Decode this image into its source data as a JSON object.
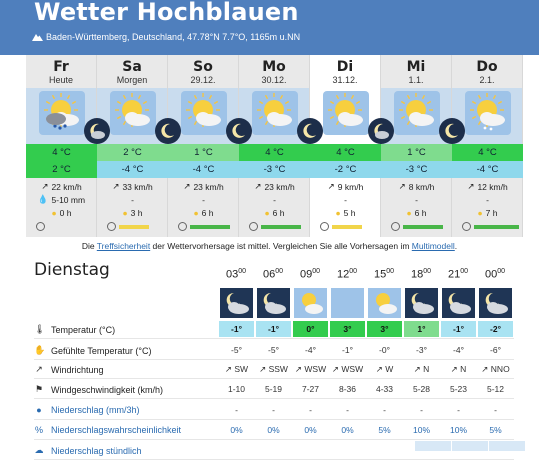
{
  "header": {
    "title": "Wetter Hochblauen",
    "subtitle": "Baden-Württemberg, Deutschland, 47.78°N 7.7°O, 1165m u.NN",
    "bg_color": "#4f7fbd"
  },
  "days": [
    {
      "name": "Fr",
      "date": "Heute",
      "tmax": "4 °C",
      "tmin": "2 °C",
      "wind": "22 km/h",
      "precip": "5-10 mm",
      "sun": "0 h",
      "icon": "cloud-sun-rain-icon"
    },
    {
      "name": "Sa",
      "date": "Morgen",
      "tmax": "2 °C",
      "tmin": "-4 °C",
      "wind": "33 km/h",
      "precip": "",
      "sun": "3 h",
      "icon": "sun-cloud-icon"
    },
    {
      "name": "So",
      "date": "29.12.",
      "tmax": "1 °C",
      "tmin": "-4 °C",
      "wind": "23 km/h",
      "precip": "",
      "sun": "6 h",
      "icon": "sun-cloud-icon"
    },
    {
      "name": "Mo",
      "date": "30.12.",
      "tmax": "4 °C",
      "tmin": "-3 °C",
      "wind": "23 km/h",
      "precip": "",
      "sun": "6 h",
      "icon": "sun-cloud-icon"
    },
    {
      "name": "Di",
      "date": "31.12.",
      "tmax": "4 °C",
      "tmin": "-2 °C",
      "wind": "9 km/h",
      "precip": "",
      "sun": "5 h",
      "icon": "sun-cloud-icon"
    },
    {
      "name": "Mi",
      "date": "1.1.",
      "tmax": "1 °C",
      "tmin": "-3 °C",
      "wind": "8 km/h",
      "precip": "",
      "sun": "6 h",
      "icon": "sun-cloud-icon"
    },
    {
      "name": "Do",
      "date": "2.1.",
      "tmax": "4 °C",
      "tmin": "-4 °C",
      "wind": "12 km/h",
      "precip": "",
      "sun": "7 h",
      "icon": "sun-cloud-snow-icon"
    }
  ],
  "note": {
    "pre": "Die ",
    "link1": "Treffsicherheit",
    "mid": " der Wettervorhersage ist mittel. Vergleichen Sie alle Vorhersagen im ",
    "link2": "Multimodell",
    "post": "."
  },
  "hourly": {
    "day_label": "Dienstag",
    "hours": [
      "03",
      "06",
      "09",
      "12",
      "15",
      "18",
      "21",
      "00"
    ],
    "hour_suffix": "00",
    "rows": {
      "temp": {
        "label": "Temperatur (°C)",
        "values": [
          "-1°",
          "-1°",
          "0°",
          "3°",
          "3°",
          "1°",
          "-1°",
          "-2°"
        ]
      },
      "feels": {
        "label": "Gefühlte Temperatur (°C)",
        "values": [
          "-5°",
          "-5°",
          "-4°",
          "-1°",
          "-0°",
          "-3°",
          "-4°",
          "-6°"
        ]
      },
      "wind_dir": {
        "label": "Windrichtung",
        "values": [
          "SW",
          "SSW",
          "WSW",
          "WSW",
          "W",
          "N",
          "N",
          "NNO"
        ]
      },
      "wind_speed": {
        "label": "Windgeschwindigkeit (km/h)",
        "values": [
          "1-10",
          "5-19",
          "7-27",
          "8-36",
          "4-33",
          "5-28",
          "5-23",
          "5-12"
        ]
      },
      "precip": {
        "label": "Niederschlag (mm/3h)",
        "values": [
          "-",
          "-",
          "-",
          "-",
          "-",
          "-",
          "-",
          "-"
        ]
      },
      "precip_prob": {
        "label": "Niederschlagswahrscheinlichkeit",
        "values": [
          "0%",
          "0%",
          "0%",
          "0%",
          "5%",
          "10%",
          "10%",
          "5%"
        ]
      },
      "precip_hourly": {
        "label": "Niederschlag stündlich"
      }
    }
  }
}
